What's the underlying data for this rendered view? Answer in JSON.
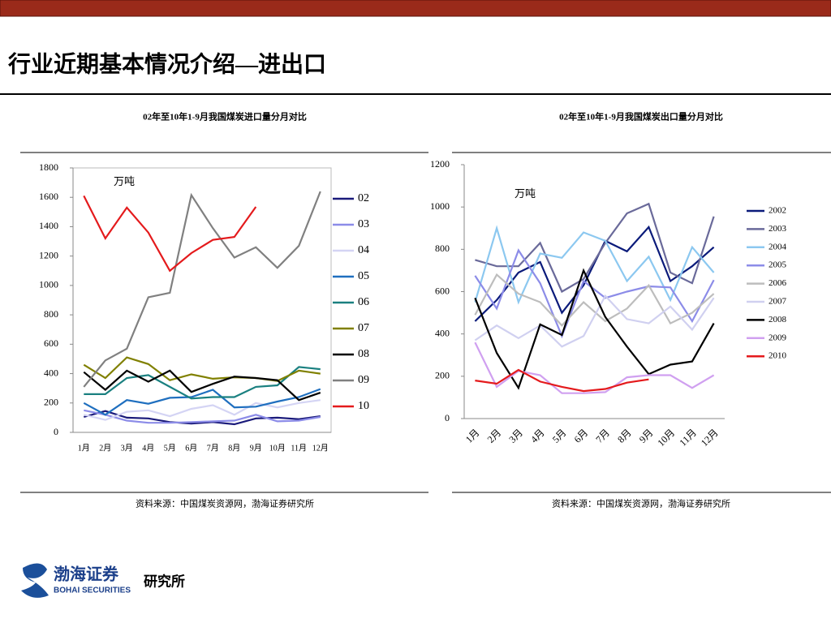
{
  "slide_title": "行业近期基本情况介绍—进出口",
  "logo": {
    "name_cn": "渤海证券",
    "name_en": "BOHAI SECURITIES",
    "dept": "研究所"
  },
  "chart_data": [
    {
      "type": "line",
      "title": "02年至10年1-9月我国煤炭进口量分月对比",
      "unit": "万吨",
      "source": "资料来源：中国煤炭资源网，渤海证券研究所",
      "categories": [
        "1月",
        "2月",
        "3月",
        "4月",
        "5月",
        "6月",
        "7月",
        "8月",
        "9月",
        "10月",
        "11月",
        "12月"
      ],
      "ylim": [
        0,
        1800
      ],
      "yticks": [
        0,
        200,
        400,
        600,
        800,
        1000,
        1200,
        1400,
        1600,
        1800
      ],
      "legend": "right",
      "series": [
        {
          "name": "02",
          "color": "#1a1a7a",
          "values": [
            105,
            145,
            100,
            95,
            70,
            60,
            70,
            55,
            95,
            100,
            90,
            110
          ]
        },
        {
          "name": "03",
          "color": "#8c8ce8",
          "values": [
            150,
            120,
            80,
            65,
            65,
            70,
            75,
            80,
            120,
            75,
            80,
            105
          ]
        },
        {
          "name": "04",
          "color": "#d4d4f4",
          "values": [
            120,
            85,
            140,
            150,
            110,
            160,
            185,
            120,
            200,
            170,
            200,
            220
          ]
        },
        {
          "name": "05",
          "color": "#1f6fbf",
          "values": [
            200,
            120,
            220,
            195,
            235,
            240,
            290,
            170,
            175,
            210,
            240,
            295
          ]
        },
        {
          "name": "06",
          "color": "#1a8080",
          "values": [
            260,
            260,
            370,
            390,
            310,
            230,
            240,
            240,
            310,
            320,
            445,
            430
          ]
        },
        {
          "name": "07",
          "color": "#808000",
          "values": [
            460,
            370,
            510,
            465,
            355,
            395,
            365,
            375,
            370,
            350,
            420,
            400
          ]
        },
        {
          "name": "08",
          "color": "#000000",
          "values": [
            410,
            290,
            420,
            345,
            420,
            275,
            330,
            380,
            370,
            355,
            220,
            270
          ]
        },
        {
          "name": "09",
          "color": "#808080",
          "values": [
            310,
            490,
            570,
            920,
            950,
            1615,
            1390,
            1190,
            1260,
            1120,
            1270,
            1640
          ]
        },
        {
          "name": "10",
          "color": "#e41a1c",
          "values": [
            1610,
            1320,
            1530,
            1360,
            1100,
            1220,
            1310,
            1330,
            1535,
            null,
            null,
            null
          ]
        }
      ]
    },
    {
      "type": "line",
      "title": "02年至10年1-9月我国煤炭出口量分月对比",
      "unit": "万吨",
      "source": "资料来源：中国煤炭资源网，渤海证券研究所",
      "categories": [
        "1月",
        "2月",
        "3月",
        "4月",
        "5月",
        "6月",
        "7月",
        "8月",
        "9月",
        "10月",
        "11月",
        "12月"
      ],
      "ylim": [
        0,
        1200
      ],
      "yticks": [
        0,
        200,
        400,
        600,
        800,
        1000,
        1200
      ],
      "legend": "right",
      "series": [
        {
          "name": "2002",
          "color": "#0a1a7a",
          "values": [
            460,
            560,
            690,
            740,
            500,
            630,
            840,
            790,
            905,
            650,
            720,
            810
          ]
        },
        {
          "name": "2003",
          "color": "#6a6a9a",
          "values": [
            750,
            720,
            720,
            830,
            600,
            660,
            830,
            970,
            1015,
            690,
            640,
            955
          ]
        },
        {
          "name": "2004",
          "color": "#8cc8f0",
          "values": [
            550,
            900,
            550,
            780,
            760,
            880,
            840,
            650,
            765,
            560,
            810,
            690
          ]
        },
        {
          "name": "2005",
          "color": "#8c8ce8",
          "values": [
            675,
            520,
            795,
            640,
            390,
            650,
            570,
            600,
            625,
            620,
            460,
            655
          ]
        },
        {
          "name": "2006",
          "color": "#bdbdbd",
          "values": [
            490,
            680,
            590,
            550,
            440,
            550,
            460,
            520,
            630,
            450,
            500,
            590
          ]
        },
        {
          "name": "2007",
          "color": "#d0d0f0",
          "values": [
            370,
            440,
            380,
            440,
            340,
            390,
            580,
            470,
            450,
            530,
            420,
            570
          ]
        },
        {
          "name": "2008",
          "color": "#000000",
          "values": [
            570,
            310,
            145,
            445,
            395,
            700,
            480,
            340,
            210,
            255,
            270,
            450
          ]
        },
        {
          "name": "2009",
          "color": "#d0a0f0",
          "values": [
            360,
            150,
            225,
            205,
            120,
            120,
            125,
            195,
            205,
            205,
            145,
            205
          ]
        },
        {
          "name": "2010",
          "color": "#e41a1c",
          "values": [
            180,
            165,
            230,
            175,
            150,
            130,
            140,
            170,
            185,
            null,
            null,
            null
          ]
        }
      ]
    }
  ]
}
